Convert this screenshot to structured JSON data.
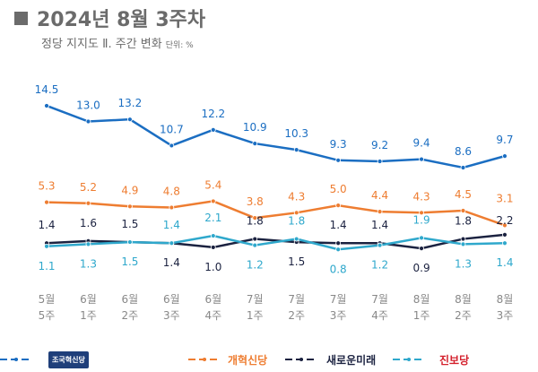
{
  "header": {
    "title": "2024년 8월 3주차",
    "subtitle": "정당 지지도 Ⅱ. 주간 변화",
    "unit": "단위: %"
  },
  "chart_data": {
    "type": "line",
    "title": "2024년 8월 3주차",
    "subtitle": "정당 지지도 Ⅱ. 주간 변화",
    "unit": "단위: %",
    "categories": [
      [
        "5월",
        "5주"
      ],
      [
        "6월",
        "1주"
      ],
      [
        "6월",
        "2주"
      ],
      [
        "6월",
        "3주"
      ],
      [
        "6월",
        "4주"
      ],
      [
        "7월",
        "1주"
      ],
      [
        "7월",
        "2주"
      ],
      [
        "7월",
        "3주"
      ],
      [
        "7월",
        "4주"
      ],
      [
        "8월",
        "1주"
      ],
      [
        "8월",
        "2주"
      ],
      [
        "8월",
        "3주"
      ]
    ],
    "grid": false,
    "legend_placement": "bottom",
    "series": [
      {
        "name": "조국혁신당",
        "color": "#1b6ec2",
        "values": [
          14.5,
          13.0,
          13.2,
          10.7,
          12.2,
          10.9,
          10.3,
          9.3,
          9.2,
          9.4,
          8.6,
          9.7
        ]
      },
      {
        "name": "개혁신당",
        "color": "#ee7d31",
        "values": [
          5.3,
          5.2,
          4.9,
          4.8,
          5.4,
          3.8,
          4.3,
          5.0,
          4.4,
          4.3,
          4.5,
          3.1
        ]
      },
      {
        "name": "새로운미래",
        "color": "#1b2240",
        "values": [
          1.4,
          1.6,
          1.5,
          1.4,
          1.0,
          1.8,
          1.5,
          1.4,
          1.4,
          0.9,
          1.8,
          2.2
        ]
      },
      {
        "name": "진보당",
        "color": "#2fa8cc",
        "values": [
          1.1,
          1.3,
          1.5,
          1.4,
          2.1,
          1.2,
          1.8,
          0.8,
          1.2,
          1.9,
          1.3,
          1.4
        ]
      }
    ]
  }
}
